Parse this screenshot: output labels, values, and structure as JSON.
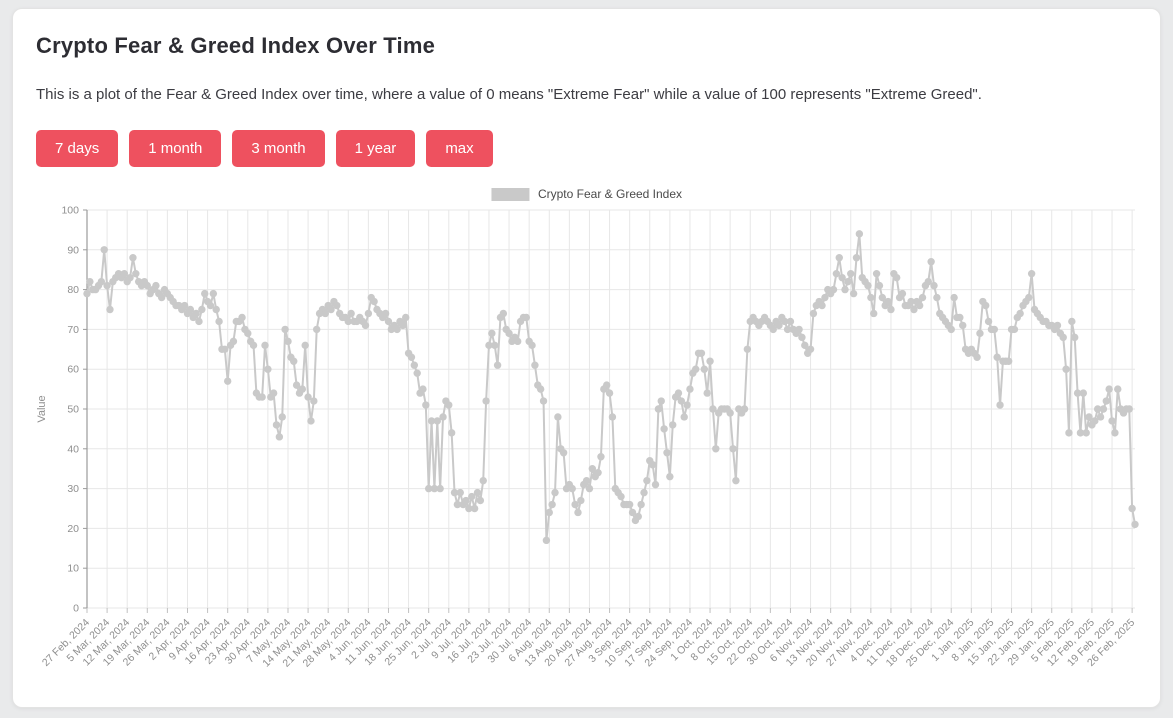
{
  "page": {
    "title": "Crypto Fear & Greed Index Over Time",
    "subtitle": "This is a plot of the Fear & Greed Index over time, where a value of 0 means \"Extreme Fear\" while a value of 100 represents \"Extreme Greed\"."
  },
  "toolbar": {
    "buttons": [
      "7 days",
      "1 month",
      "3 month",
      "1 year",
      "max"
    ],
    "button_color": "#ee515f"
  },
  "legend": {
    "label": "Crypto Fear & Greed Index",
    "swatch_color": "#c9c9c9"
  },
  "chart_data": {
    "type": "line",
    "title": "Crypto Fear & Greed Index",
    "xlabel": "",
    "ylabel": "Value",
    "ylim": [
      0,
      100
    ],
    "ytick_step": 10,
    "grid": true,
    "legend_position": "top-center",
    "line_color": "#c9c9c9",
    "marker": "circle",
    "x_start_label": "27 Feb, 2024",
    "x_end_label": "26 Feb, 2025",
    "x_tick_every_days": 7,
    "x_tick_labels": [
      "27 Feb, 2024",
      "5 Mar, 2024",
      "12 Mar, 2024",
      "19 Mar, 2024",
      "26 Mar, 2024",
      "2 Apr, 2024",
      "9 Apr, 2024",
      "16 Apr, 2024",
      "23 Apr, 2024",
      "30 Apr, 2024",
      "7 May, 2024",
      "14 May, 2024",
      "21 May, 2024",
      "28 May, 2024",
      "4 Jun, 2024",
      "11 Jun, 2024",
      "18 Jun, 2024",
      "25 Jun, 2024",
      "2 Jul, 2024",
      "9 Jul, 2024",
      "16 Jul, 2024",
      "23 Jul, 2024",
      "30 Jul, 2024",
      "6 Aug, 2024",
      "13 Aug, 2024",
      "20 Aug, 2024",
      "27 Aug, 2024",
      "3 Sep, 2024",
      "10 Sep, 2024",
      "17 Sep, 2024",
      "24 Sep, 2024",
      "1 Oct, 2024",
      "8 Oct, 2024",
      "15 Oct, 2024",
      "22 Oct, 2024",
      "30 Oct, 2024",
      "6 Nov, 2024",
      "13 Nov, 2024",
      "20 Nov, 2024",
      "27 Nov, 2024",
      "4 Dec, 2024",
      "11 Dec, 2024",
      "18 Dec, 2024",
      "25 Dec, 2024",
      "1 Jan, 2025",
      "8 Jan, 2025",
      "15 Jan, 2025",
      "22 Jan, 2025",
      "29 Jan, 2025",
      "5 Feb, 2025",
      "12 Feb, 2025",
      "19 Feb, 2025",
      "26 Feb, 2025"
    ],
    "series": [
      {
        "name": "Crypto Fear & Greed Index",
        "values": [
          79,
          82,
          80,
          80,
          81,
          82,
          90,
          81,
          75,
          82,
          83,
          84,
          83,
          84,
          82,
          83,
          88,
          84,
          82,
          81,
          82,
          81,
          79,
          80,
          81,
          79,
          78,
          80,
          79,
          78,
          77,
          76,
          76,
          75,
          76,
          74,
          75,
          73,
          74,
          72,
          75,
          79,
          77,
          76,
          79,
          75,
          72,
          65,
          65,
          57,
          66,
          67,
          72,
          72,
          73,
          70,
          69,
          67,
          66,
          54,
          53,
          53,
          66,
          60,
          53,
          54,
          46,
          43,
          48,
          70,
          67,
          63,
          62,
          56,
          54,
          55,
          66,
          53,
          47,
          52,
          70,
          74,
          75,
          74,
          76,
          75,
          77,
          76,
          74,
          73,
          73,
          72,
          74,
          72,
          72,
          73,
          72,
          71,
          74,
          78,
          77,
          75,
          74,
          73,
          74,
          72,
          70,
          71,
          70,
          72,
          71,
          73,
          64,
          63,
          61,
          59,
          54,
          55,
          51,
          30,
          47,
          30,
          47,
          30,
          48,
          52,
          51,
          44,
          29,
          26,
          29,
          26,
          27,
          25,
          28,
          25,
          29,
          27,
          32,
          52,
          66,
          69,
          66,
          61,
          73,
          74,
          70,
          69,
          67,
          68,
          67,
          72,
          73,
          73,
          67,
          66,
          61,
          56,
          55,
          52,
          17,
          24,
          26,
          29,
          48,
          40,
          39,
          30,
          31,
          30,
          26,
          24,
          27,
          31,
          32,
          30,
          35,
          33,
          34,
          38,
          55,
          56,
          54,
          48,
          30,
          29,
          28,
          26,
          26,
          26,
          24,
          22,
          23,
          26,
          29,
          32,
          37,
          36,
          31,
          50,
          52,
          45,
          39,
          33,
          46,
          53,
          54,
          52,
          48,
          51,
          55,
          59,
          60,
          64,
          64,
          60,
          54,
          62,
          50,
          40,
          49,
          50,
          50,
          50,
          49,
          40,
          32,
          50,
          49,
          50,
          65,
          72,
          73,
          72,
          71,
          72,
          73,
          72,
          71,
          70,
          72,
          71,
          73,
          72,
          70,
          72,
          70,
          69,
          70,
          68,
          66,
          64,
          65,
          74,
          76,
          77,
          76,
          78,
          80,
          79,
          80,
          84,
          88,
          83,
          80,
          82,
          84,
          79,
          88,
          94,
          83,
          82,
          81,
          78,
          74,
          84,
          81,
          78,
          76,
          77,
          75,
          84,
          83,
          78,
          79,
          76,
          76,
          77,
          75,
          77,
          76,
          78,
          81,
          82,
          87,
          81,
          78,
          74,
          73,
          72,
          71,
          70,
          78,
          73,
          73,
          71,
          65,
          64,
          65,
          64,
          63,
          69,
          77,
          76,
          72,
          70,
          70,
          63,
          51,
          62,
          62,
          62,
          70,
          70,
          73,
          74,
          76,
          77,
          78,
          84,
          75,
          74,
          73,
          72,
          72,
          71,
          71,
          70,
          71,
          69,
          68,
          60,
          44,
          72,
          68,
          54,
          44,
          54,
          44,
          48,
          46,
          47,
          50,
          48,
          50,
          52,
          55,
          47,
          44,
          55,
          50,
          49,
          50,
          50,
          25,
          21
        ]
      }
    ]
  }
}
